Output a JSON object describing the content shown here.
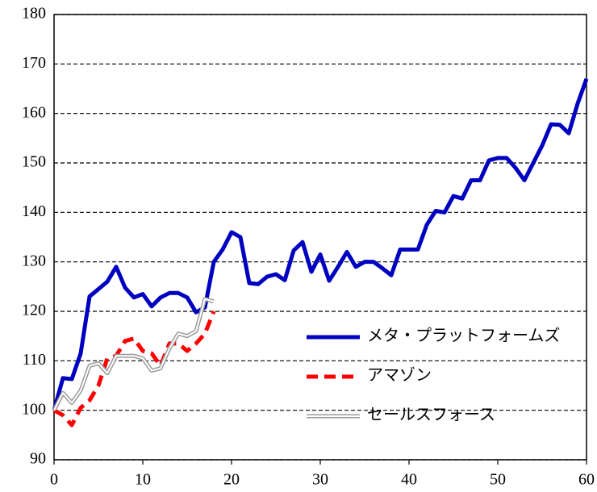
{
  "chart_data": {
    "type": "line",
    "x": [
      0,
      1,
      2,
      3,
      4,
      5,
      6,
      7,
      8,
      9,
      10,
      11,
      12,
      13,
      14,
      15,
      16,
      17,
      18,
      19,
      20,
      21,
      22,
      23,
      24,
      25,
      26,
      27,
      28,
      29,
      30,
      31,
      32,
      33,
      34,
      35,
      36,
      37,
      38,
      39,
      40,
      41,
      42,
      43,
      44,
      45,
      46,
      47,
      48,
      49,
      50,
      51,
      52,
      53,
      54,
      55,
      56,
      57,
      58,
      59,
      60
    ],
    "series": [
      {
        "name": "メタ・プラットフォームズ",
        "color": "#0000c0",
        "style": "solid",
        "values": [
          100,
          106.5,
          106.3,
          111.5,
          123,
          124.5,
          126,
          129,
          124.8,
          122.8,
          123.5,
          121,
          122.8,
          123.7,
          123.7,
          122.8,
          119.8,
          120.8,
          130,
          132.5,
          136,
          135,
          125.7,
          125.5,
          127,
          127.5,
          126.3,
          132.3,
          134,
          128,
          131.5,
          126.2,
          129,
          132,
          129,
          130,
          130,
          128.7,
          127.3,
          132.5,
          132.5,
          132.5,
          137.5,
          140.3,
          140,
          143.3,
          142.8,
          146.5,
          146.5,
          150.5,
          151,
          151,
          149,
          146.5,
          150,
          153.5,
          157.8,
          157.7,
          156,
          162,
          167
        ]
      },
      {
        "name": "アマゾン",
        "color": "#ff0000",
        "style": "dashed",
        "values": [
          100,
          99,
          97,
          100.5,
          102,
          105,
          110.5,
          111,
          114,
          114.5,
          112,
          111.5,
          109,
          113.5,
          113.5,
          112,
          113.5,
          115.5,
          120,
          null,
          null,
          null,
          null,
          null,
          null,
          null,
          null,
          null,
          null,
          null,
          null,
          null,
          null,
          null,
          null,
          null,
          null,
          null,
          null,
          null,
          null,
          null,
          null,
          null,
          null,
          null,
          null,
          null,
          null,
          null,
          null,
          null,
          null,
          null,
          null,
          null,
          null,
          null,
          null,
          null,
          null
        ]
      },
      {
        "name": "セールスフォース",
        "color": "#999999",
        "style": "double",
        "values": [
          100,
          103.5,
          101.5,
          104,
          109,
          109.5,
          107.5,
          111,
          111,
          111,
          110.5,
          108,
          108.5,
          112.5,
          115.5,
          115,
          116,
          122.5,
          122,
          null,
          null,
          null,
          null,
          null,
          null,
          null,
          null,
          null,
          null,
          null,
          null,
          null,
          null,
          null,
          null,
          null,
          null,
          null,
          null,
          null,
          null,
          null,
          null,
          null,
          null,
          null,
          null,
          null,
          null,
          null,
          null,
          null,
          null,
          null,
          null,
          null,
          null,
          null,
          null,
          null,
          null
        ]
      }
    ],
    "xlim": [
      0,
      60
    ],
    "xticks": [
      0,
      10,
      20,
      30,
      40,
      50,
      60
    ],
    "ylim": [
      90,
      180
    ],
    "yticks": [
      90,
      100,
      110,
      120,
      130,
      140,
      150,
      160,
      170,
      180
    ],
    "grid": true,
    "legend_position": "right"
  }
}
